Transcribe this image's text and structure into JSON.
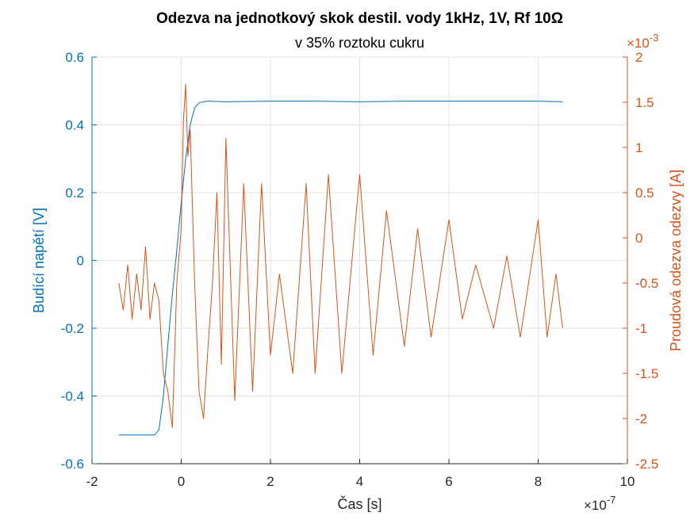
{
  "chart_data": {
    "type": "line",
    "title": "Odezva na jednotkový skok destil. vody 1kHz, 1V, Rf 10Ω",
    "subtitle": "v 35% roztoku cukru",
    "xlabel": "Čas [s]",
    "x_exponent": "×10",
    "x_exponent_power": "-7",
    "xlim": [
      -2e-07,
      1e-06
    ],
    "x_ticks": [
      "-2",
      "0",
      "2",
      "4",
      "6",
      "8",
      "10"
    ],
    "x_tick_values": [
      -2e-07,
      0,
      2e-07,
      4e-07,
      6e-07,
      8e-07,
      1e-06
    ],
    "grid": true,
    "axes": [
      {
        "side": "left",
        "label": "Budící napětí [V]",
        "color": "#0072BD",
        "ylim": [
          -0.6,
          0.6
        ],
        "ticks": [
          "-0.6",
          "-0.4",
          "-0.2",
          "0",
          "0.2",
          "0.4",
          "0.6"
        ],
        "tick_values": [
          -0.6,
          -0.4,
          -0.2,
          0,
          0.2,
          0.4,
          0.6
        ]
      },
      {
        "side": "right",
        "label": "Proudová odezva odezvy [A]",
        "color": "#D95319",
        "exponent": "×10",
        "exponent_power": "-3",
        "ylim": [
          -0.0025,
          0.002
        ],
        "ticks": [
          "-2.5",
          "-2",
          "-1.5",
          "-1",
          "-0.5",
          "0",
          "0.5",
          "1",
          "1.5",
          "2"
        ],
        "tick_values": [
          -0.0025,
          -0.002,
          -0.0015,
          -0.001,
          -0.0005,
          0,
          0.0005,
          0.001,
          0.0015,
          0.002
        ]
      }
    ],
    "series": [
      {
        "axis": "left",
        "color": "#0072BD",
        "x": [
          -1.4e-07,
          -1.2e-07,
          -1e-07,
          -8e-08,
          -6e-08,
          -5e-08,
          -4e-08,
          -3e-08,
          -2e-08,
          -1e-08,
          0,
          1e-08,
          2e-08,
          3e-08,
          4e-08,
          5e-08,
          6e-08,
          1e-07,
          2e-07,
          3e-07,
          4e-07,
          5e-07,
          6e-07,
          7e-07,
          8e-07,
          8.55e-07
        ],
        "y": [
          -0.515,
          -0.515,
          -0.515,
          -0.515,
          -0.515,
          -0.5,
          -0.4,
          -0.25,
          -0.1,
          0.03,
          0.17,
          0.3,
          0.4,
          0.45,
          0.465,
          0.468,
          0.47,
          0.468,
          0.47,
          0.47,
          0.468,
          0.47,
          0.47,
          0.47,
          0.47,
          0.468
        ]
      },
      {
        "axis": "right",
        "color": "#D95319",
        "x": [
          -1.4e-07,
          -1.3e-07,
          -1.2e-07,
          -1.1e-07,
          -1e-07,
          -9e-08,
          -8e-08,
          -7e-08,
          -6e-08,
          -5e-08,
          -4e-08,
          -3e-08,
          -2e-08,
          -1e-08,
          0,
          5e-09,
          1e-08,
          1.5e-08,
          2e-08,
          3e-08,
          4e-08,
          5e-08,
          6e-08,
          7e-08,
          8e-08,
          9e-08,
          1e-07,
          1.2e-07,
          1.4e-07,
          1.6e-07,
          1.8e-07,
          2e-07,
          2.2e-07,
          2.5e-07,
          2.8e-07,
          3e-07,
          3.3e-07,
          3.6e-07,
          4e-07,
          4.3e-07,
          4.6e-07,
          5e-07,
          5.3e-07,
          5.6e-07,
          6e-07,
          6.3e-07,
          6.6e-07,
          7e-07,
          7.3e-07,
          7.6e-07,
          8e-07,
          8.2e-07,
          8.4e-07,
          8.55e-07
        ],
        "y": [
          -0.0005,
          -0.0008,
          -0.0003,
          -0.0009,
          -0.0004,
          -0.0008,
          -0.0001,
          -0.0009,
          -0.0005,
          -0.0007,
          -0.0015,
          -0.0017,
          -0.0021,
          -0.0005,
          0.0001,
          0.0013,
          0.0017,
          0.0009,
          0.0012,
          -0.0005,
          -0.0017,
          -0.002,
          -0.0012,
          -0.0005,
          0.0005,
          -0.0014,
          0.0011,
          -0.0018,
          0.0006,
          -0.0017,
          0.0006,
          -0.0013,
          -0.0004,
          -0.0015,
          0.0006,
          -0.0015,
          0.0007,
          -0.0015,
          0.0007,
          -0.0013,
          0.0003,
          -0.0012,
          0.0001,
          -0.0011,
          0.0002,
          -0.0009,
          -0.0003,
          -0.001,
          -0.0002,
          -0.0011,
          0.0002,
          -0.0011,
          -0.0004,
          -0.001
        ]
      }
    ]
  }
}
